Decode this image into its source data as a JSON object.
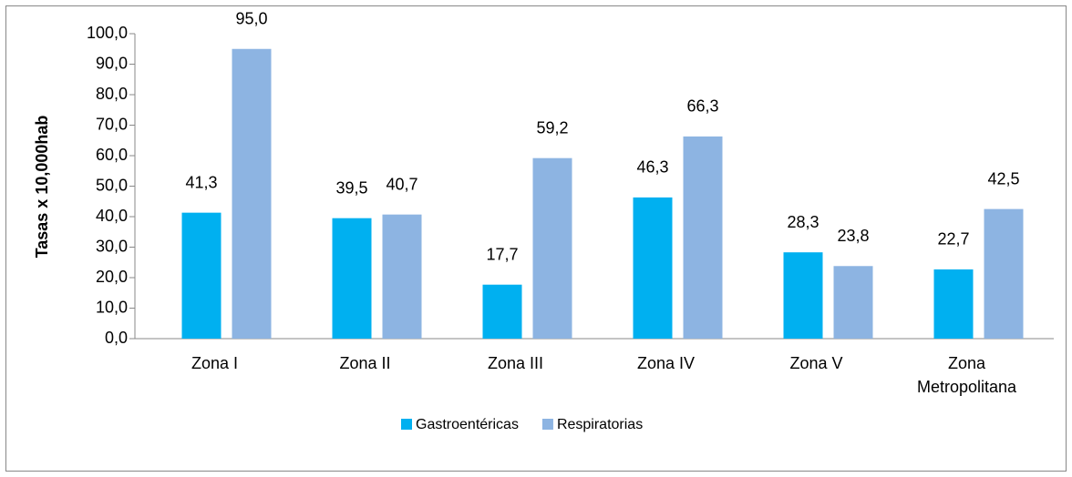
{
  "chart_data": {
    "type": "bar",
    "ylabel": "Tasas x 10,000hab",
    "categories": [
      "Zona I",
      "Zona II",
      "Zona III",
      "Zona IV",
      "Zona V",
      "Zona Metropolitana"
    ],
    "series": [
      {
        "name": "Gastroentéricas",
        "color": "#00b0f0",
        "values": [
          41.3,
          39.5,
          17.7,
          46.3,
          28.3,
          22.7
        ],
        "value_labels": [
          "41,3",
          "39,5",
          "17,7",
          "46,3",
          "28,3",
          "22,7"
        ]
      },
      {
        "name": "Respiratorias",
        "color": "#8db4e2",
        "values": [
          95.0,
          40.7,
          59.2,
          66.3,
          23.8,
          42.5
        ],
        "value_labels": [
          "95,0",
          "40,7",
          "59,2",
          "66,3",
          "23,8",
          "42,5"
        ]
      }
    ],
    "ylim": [
      0,
      100
    ],
    "yticks": [
      {
        "value": 0,
        "label": "0,0"
      },
      {
        "value": 10,
        "label": "10,0"
      },
      {
        "value": 20,
        "label": "20,0"
      },
      {
        "value": 30,
        "label": "30,0"
      },
      {
        "value": 40,
        "label": "40,0"
      },
      {
        "value": 50,
        "label": "50,0"
      },
      {
        "value": 60,
        "label": "60,0"
      },
      {
        "value": 70,
        "label": "70,0"
      },
      {
        "value": 80,
        "label": "80,0"
      },
      {
        "value": 90,
        "label": "90,0"
      },
      {
        "value": 100,
        "label": "100,0"
      }
    ],
    "grid": false,
    "legend": "bottom"
  }
}
